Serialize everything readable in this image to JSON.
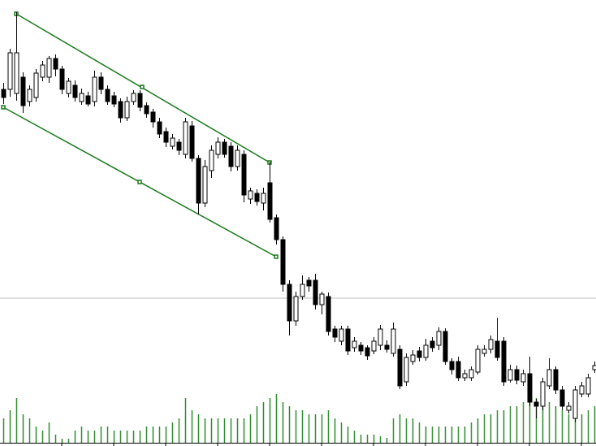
{
  "chart_data": {
    "type": "candlestick",
    "ylim": [
      0,
      549
    ],
    "y2lim": [
      0,
      549
    ],
    "up_color": "#ffffff",
    "down_color": "#000000",
    "volume_color": "#2e8b2e",
    "open": [
      439,
      439,
      434,
      454,
      424,
      429,
      454,
      454,
      477,
      464,
      434,
      444,
      424,
      431,
      424,
      454,
      439,
      431,
      424,
      404,
      424,
      434,
      419,
      411,
      399,
      387,
      369,
      374,
      359,
      394,
      354,
      299,
      339,
      359,
      374,
      369,
      344,
      359,
      304,
      311,
      299,
      324,
      281,
      254,
      199,
      154,
      184,
      204,
      204,
      174,
      184,
      144,
      129,
      144,
      121,
      124,
      121,
      117,
      124,
      124,
      114,
      119,
      79,
      104,
      117,
      109,
      129,
      124,
      141,
      104,
      104,
      84,
      84,
      91,
      114,
      119,
      129,
      129,
      81,
      94,
      79,
      89,
      54,
      49,
      74,
      94,
      69,
      44,
      34,
      64,
      64,
      94
    ],
    "high": [
      447,
      489,
      534,
      460,
      444,
      464,
      474,
      480,
      482,
      468,
      453,
      450,
      440,
      436,
      462,
      460,
      444,
      436,
      428,
      430,
      438,
      438,
      423,
      415,
      404,
      392,
      384,
      378,
      404,
      400,
      358,
      352,
      370,
      380,
      378,
      374,
      370,
      364,
      318,
      316,
      318,
      350,
      285,
      258,
      204,
      190,
      210,
      208,
      212,
      190,
      189,
      148,
      148,
      148,
      134,
      128,
      124,
      134,
      149,
      130,
      152,
      124,
      114,
      118,
      122,
      132,
      134,
      146,
      145,
      108,
      110,
      94,
      98,
      124,
      124,
      136,
      158,
      134,
      100,
      99,
      94,
      110,
      58,
      84,
      108,
      98,
      74,
      54,
      74,
      79,
      89,
      104
    ],
    "low": [
      421,
      430,
      425,
      410,
      418,
      424,
      449,
      447,
      455,
      433,
      429,
      424,
      420,
      418,
      418,
      433,
      420,
      417,
      398,
      400,
      420,
      412,
      404,
      392,
      379,
      368,
      365,
      358,
      354,
      350,
      285,
      294,
      330,
      354,
      355,
      338,
      339,
      300,
      298,
      296,
      290,
      275,
      248,
      190,
      136,
      148,
      180,
      190,
      168,
      162,
      136,
      128,
      124,
      112,
      116,
      112,
      106,
      113,
      118,
      115,
      110,
      70,
      74,
      100,
      104,
      105,
      116,
      118,
      100,
      88,
      80,
      80,
      80,
      88,
      110,
      114,
      105,
      74,
      78,
      76,
      74,
      49,
      34,
      44,
      70,
      64,
      44,
      40,
      29,
      60,
      60,
      90
    ],
    "close": [
      429,
      484,
      484,
      419,
      439,
      459,
      469,
      477,
      464,
      439,
      449,
      429,
      434,
      421,
      454,
      439,
      424,
      421,
      404,
      424,
      434,
      417,
      409,
      399,
      384,
      374,
      379,
      364,
      399,
      354,
      299,
      344,
      364,
      374,
      359,
      344,
      364,
      309,
      314,
      301,
      311,
      279,
      254,
      199,
      154,
      184,
      199,
      197,
      174,
      187,
      141,
      134,
      144,
      117,
      129,
      117,
      111,
      129,
      144,
      119,
      144,
      74,
      109,
      112,
      109,
      124,
      121,
      141,
      104,
      94,
      84,
      89,
      94,
      119,
      119,
      131,
      109,
      79,
      94,
      81,
      89,
      54,
      49,
      79,
      94,
      69,
      49,
      49,
      69,
      74,
      84,
      99
    ],
    "volume": [
      30,
      40,
      55,
      35,
      30,
      20,
      15,
      25,
      10,
      5,
      5,
      15,
      20,
      15,
      15,
      20,
      20,
      15,
      15,
      15,
      15,
      15,
      20,
      20,
      20,
      20,
      25,
      30,
      55,
      40,
      35,
      30,
      30,
      30,
      30,
      30,
      30,
      30,
      35,
      45,
      50,
      55,
      60,
      50,
      45,
      40,
      40,
      35,
      35,
      35,
      40,
      30,
      25,
      20,
      15,
      10,
      10,
      10,
      8,
      6,
      30,
      35,
      30,
      30,
      25,
      20,
      20,
      20,
      20,
      20,
      20,
      20,
      25,
      30,
      35,
      35,
      40,
      40,
      45,
      45,
      50,
      50,
      55,
      50,
      50,
      45,
      40,
      35,
      30,
      35,
      40,
      45
    ]
  }
}
